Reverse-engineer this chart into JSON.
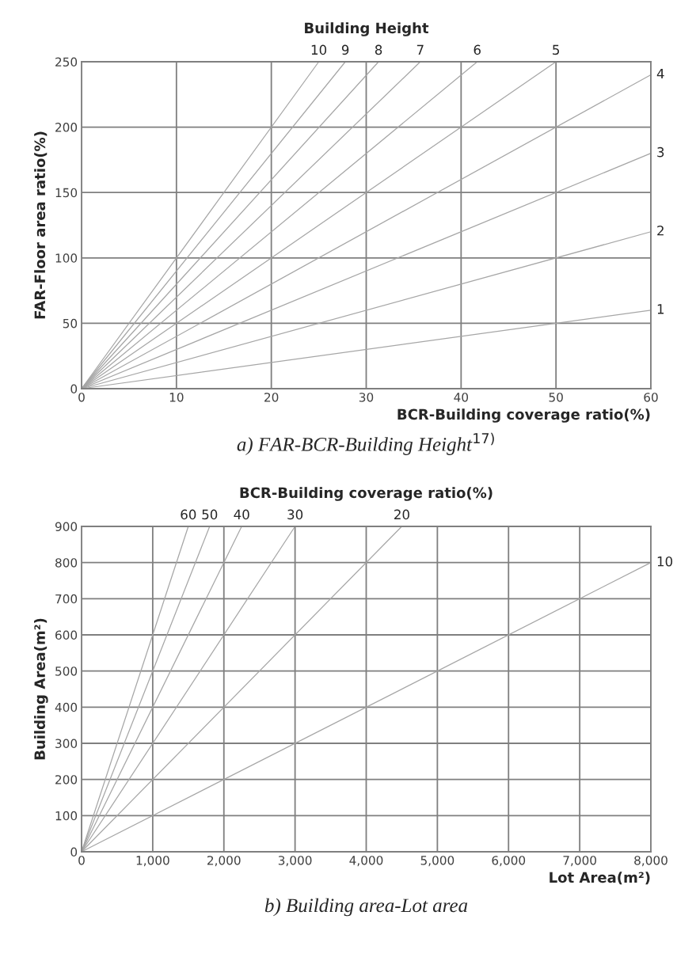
{
  "chart_data": [
    {
      "type": "line",
      "title": "Building Height",
      "xlabel": "BCR-Building coverage ratio(%)",
      "ylabel": "FAR-Floor area ratio(%)",
      "xlim": [
        0,
        60
      ],
      "ylim": [
        0,
        250
      ],
      "xticks": [
        0,
        10,
        20,
        30,
        40,
        50,
        60
      ],
      "yticks": [
        0,
        50,
        100,
        150,
        200,
        250
      ],
      "grid": true,
      "legend": false,
      "marker": "none",
      "line_style": "solid",
      "annotations": [
        "a) FAR-BCR-Building Height$^{17)}$"
      ],
      "series": [
        {
          "name": "1",
          "color": "#a6a6a6",
          "x": [
            0,
            60
          ],
          "values": [
            0,
            60
          ]
        },
        {
          "name": "2",
          "color": "#a6a6a6",
          "x": [
            0,
            60
          ],
          "values": [
            0,
            120
          ]
        },
        {
          "name": "3",
          "color": "#a6a6a6",
          "x": [
            0,
            60
          ],
          "values": [
            0,
            180
          ]
        },
        {
          "name": "4",
          "color": "#a6a6a6",
          "x": [
            0,
            60
          ],
          "values": [
            0,
            240
          ]
        },
        {
          "name": "5",
          "color": "#a6a6a6",
          "x": [
            0,
            50
          ],
          "values": [
            0,
            250
          ]
        },
        {
          "name": "6",
          "color": "#a6a6a6",
          "x": [
            0,
            41.7
          ],
          "values": [
            0,
            250
          ]
        },
        {
          "name": "7",
          "color": "#a6a6a6",
          "x": [
            0,
            35.7
          ],
          "values": [
            0,
            250
          ]
        },
        {
          "name": "8",
          "color": "#a6a6a6",
          "x": [
            0,
            31.3
          ],
          "values": [
            0,
            250
          ]
        },
        {
          "name": "9",
          "color": "#a6a6a6",
          "x": [
            0,
            27.8
          ],
          "values": [
            0,
            250
          ]
        },
        {
          "name": "10",
          "color": "#a6a6a6",
          "x": [
            0,
            25
          ],
          "values": [
            0,
            250
          ]
        }
      ]
    },
    {
      "type": "line",
      "title": "BCR-Building coverage ratio(%)",
      "xlabel": "Lot Area(m²)",
      "ylabel": "Building Area(m²)",
      "xlim": [
        0,
        8000
      ],
      "ylim": [
        0,
        900
      ],
      "xticks": [
        0,
        {
          "value": 1000,
          "label": "1,000"
        },
        {
          "value": 2000,
          "label": "2,000"
        },
        {
          "value": 3000,
          "label": "3,000"
        },
        {
          "value": 4000,
          "label": "4,000"
        },
        {
          "value": 5000,
          "label": "5,000"
        },
        {
          "value": 6000,
          "label": "6,000"
        },
        {
          "value": 7000,
          "label": "7,000"
        },
        {
          "value": 8000,
          "label": "8,000"
        }
      ],
      "yticks": [
        0,
        100,
        200,
        300,
        400,
        500,
        600,
        700,
        800,
        900
      ],
      "grid": true,
      "legend": false,
      "marker": "none",
      "line_style": "solid",
      "annotations": [
        "b) Building area-Lot area"
      ],
      "series": [
        {
          "name": "10",
          "color": "#a6a6a6",
          "x": [
            0,
            8000
          ],
          "values": [
            0,
            800
          ]
        },
        {
          "name": "20",
          "color": "#a6a6a6",
          "x": [
            0,
            4500
          ],
          "values": [
            0,
            900
          ]
        },
        {
          "name": "30",
          "color": "#a6a6a6",
          "x": [
            0,
            3000
          ],
          "values": [
            0,
            900
          ]
        },
        {
          "name": "40",
          "color": "#a6a6a6",
          "x": [
            0,
            2250
          ],
          "values": [
            0,
            900
          ]
        },
        {
          "name": "50",
          "color": "#a6a6a6",
          "x": [
            0,
            1800
          ],
          "values": [
            0,
            900
          ]
        },
        {
          "name": "60",
          "color": "#a6a6a6",
          "x": [
            0,
            1500
          ],
          "values": [
            0,
            900
          ]
        }
      ]
    }
  ]
}
